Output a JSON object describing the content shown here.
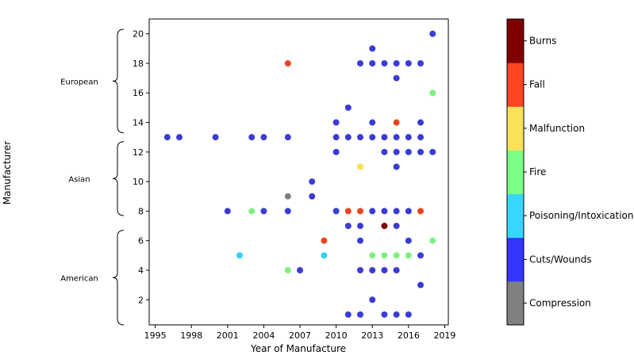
{
  "chart_data": {
    "type": "scatter",
    "xlabel": "Year of Manufacture",
    "ylabel": "Manufacturer",
    "xlim": [
      1994.5,
      2019.3
    ],
    "ylim": [
      0.3,
      21
    ],
    "xticks": [
      1995,
      1998,
      2001,
      2004,
      2007,
      2010,
      2013,
      2016,
      2019
    ],
    "yticks": [
      2,
      4,
      6,
      8,
      10,
      12,
      14,
      16,
      18,
      20
    ],
    "groups": [
      {
        "label": "European",
        "range": [
          13.3,
          20.3
        ]
      },
      {
        "label": "Asian",
        "range": [
          7.7,
          12.7
        ]
      },
      {
        "label": "American",
        "range": [
          0.3,
          6.7
        ]
      }
    ],
    "categories": [
      {
        "name": "Compression",
        "color": "#808080"
      },
      {
        "name": "Cuts/Wounds",
        "color": "#3b3bd6"
      },
      {
        "name": "Poisoning/Intoxication",
        "color": "#33d1f2"
      },
      {
        "name": "Fire",
        "color": "#80f080"
      },
      {
        "name": "Malfunction",
        "color": "#f7e050"
      },
      {
        "name": "Fall",
        "color": "#ee4422"
      },
      {
        "name": "Burns",
        "color": "#800000"
      }
    ],
    "colorbar_colors": [
      "#808080",
      "#3535ff",
      "#36d6ff",
      "#7dff85",
      "#fae35a",
      "#ff4422",
      "#800000"
    ],
    "points": [
      {
        "x": 1996,
        "y": 13,
        "c": "Cuts/Wounds"
      },
      {
        "x": 1997,
        "y": 13,
        "c": "Cuts/Wounds"
      },
      {
        "x": 2000,
        "y": 13,
        "c": "Cuts/Wounds"
      },
      {
        "x": 2003,
        "y": 13,
        "c": "Cuts/Wounds"
      },
      {
        "x": 2004,
        "y": 13,
        "c": "Cuts/Wounds"
      },
      {
        "x": 2006,
        "y": 13,
        "c": "Cuts/Wounds"
      },
      {
        "x": 2010,
        "y": 13,
        "c": "Cuts/Wounds"
      },
      {
        "x": 2011,
        "y": 13,
        "c": "Cuts/Wounds"
      },
      {
        "x": 2012,
        "y": 13,
        "c": "Cuts/Wounds"
      },
      {
        "x": 2013,
        "y": 13,
        "c": "Cuts/Wounds"
      },
      {
        "x": 2014,
        "y": 13,
        "c": "Cuts/Wounds"
      },
      {
        "x": 2015,
        "y": 13,
        "c": "Cuts/Wounds"
      },
      {
        "x": 2016,
        "y": 13,
        "c": "Cuts/Wounds"
      },
      {
        "x": 2017,
        "y": 13,
        "c": "Cuts/Wounds"
      },
      {
        "x": 2006,
        "y": 18,
        "c": "Fall"
      },
      {
        "x": 2012,
        "y": 18,
        "c": "Cuts/Wounds"
      },
      {
        "x": 2013,
        "y": 18,
        "c": "Cuts/Wounds"
      },
      {
        "x": 2014,
        "y": 18,
        "c": "Cuts/Wounds"
      },
      {
        "x": 2015,
        "y": 18,
        "c": "Cuts/Wounds"
      },
      {
        "x": 2016,
        "y": 18,
        "c": "Cuts/Wounds"
      },
      {
        "x": 2017,
        "y": 18,
        "c": "Cuts/Wounds"
      },
      {
        "x": 2013,
        "y": 19,
        "c": "Cuts/Wounds"
      },
      {
        "x": 2018,
        "y": 20,
        "c": "Cuts/Wounds"
      },
      {
        "x": 2015,
        "y": 17,
        "c": "Cuts/Wounds"
      },
      {
        "x": 2018,
        "y": 16,
        "c": "Fire"
      },
      {
        "x": 2011,
        "y": 15,
        "c": "Cuts/Wounds"
      },
      {
        "x": 2010,
        "y": 14,
        "c": "Cuts/Wounds"
      },
      {
        "x": 2013,
        "y": 14,
        "c": "Cuts/Wounds"
      },
      {
        "x": 2015,
        "y": 14,
        "c": "Fall"
      },
      {
        "x": 2017,
        "y": 14,
        "c": "Cuts/Wounds"
      },
      {
        "x": 2010,
        "y": 12,
        "c": "Cuts/Wounds"
      },
      {
        "x": 2014,
        "y": 12,
        "c": "Cuts/Wounds"
      },
      {
        "x": 2015,
        "y": 12,
        "c": "Cuts/Wounds"
      },
      {
        "x": 2016,
        "y": 12,
        "c": "Cuts/Wounds"
      },
      {
        "x": 2017,
        "y": 12,
        "c": "Cuts/Wounds"
      },
      {
        "x": 2018,
        "y": 12,
        "c": "Cuts/Wounds"
      },
      {
        "x": 2012,
        "y": 11,
        "c": "Malfunction"
      },
      {
        "x": 2015,
        "y": 11,
        "c": "Cuts/Wounds"
      },
      {
        "x": 2008,
        "y": 10,
        "c": "Cuts/Wounds"
      },
      {
        "x": 2006,
        "y": 9,
        "c": "Compression"
      },
      {
        "x": 2008,
        "y": 9,
        "c": "Cuts/Wounds"
      },
      {
        "x": 2001,
        "y": 8,
        "c": "Cuts/Wounds"
      },
      {
        "x": 2003,
        "y": 8,
        "c": "Fire"
      },
      {
        "x": 2004,
        "y": 8,
        "c": "Cuts/Wounds"
      },
      {
        "x": 2006,
        "y": 8,
        "c": "Cuts/Wounds"
      },
      {
        "x": 2010,
        "y": 8,
        "c": "Cuts/Wounds"
      },
      {
        "x": 2011,
        "y": 8,
        "c": "Fall"
      },
      {
        "x": 2012,
        "y": 8,
        "c": "Fall"
      },
      {
        "x": 2013,
        "y": 8,
        "c": "Cuts/Wounds"
      },
      {
        "x": 2014,
        "y": 8,
        "c": "Cuts/Wounds"
      },
      {
        "x": 2015,
        "y": 8,
        "c": "Cuts/Wounds"
      },
      {
        "x": 2016,
        "y": 8,
        "c": "Cuts/Wounds"
      },
      {
        "x": 2017,
        "y": 8,
        "c": "Fall"
      },
      {
        "x": 2011,
        "y": 7,
        "c": "Cuts/Wounds"
      },
      {
        "x": 2012,
        "y": 7,
        "c": "Cuts/Wounds"
      },
      {
        "x": 2014,
        "y": 7,
        "c": "Burns"
      },
      {
        "x": 2015,
        "y": 7,
        "c": "Cuts/Wounds"
      },
      {
        "x": 2009,
        "y": 6,
        "c": "Fall"
      },
      {
        "x": 2012,
        "y": 6,
        "c": "Cuts/Wounds"
      },
      {
        "x": 2016,
        "y": 6,
        "c": "Cuts/Wounds"
      },
      {
        "x": 2018,
        "y": 6,
        "c": "Fire"
      },
      {
        "x": 2002,
        "y": 5,
        "c": "Poisoning/Intoxication"
      },
      {
        "x": 2009,
        "y": 5,
        "c": "Poisoning/Intoxication"
      },
      {
        "x": 2013,
        "y": 5,
        "c": "Fire"
      },
      {
        "x": 2014,
        "y": 5,
        "c": "Fire"
      },
      {
        "x": 2015,
        "y": 5,
        "c": "Fire"
      },
      {
        "x": 2016,
        "y": 5,
        "c": "Fire"
      },
      {
        "x": 2017,
        "y": 5,
        "c": "Cuts/Wounds"
      },
      {
        "x": 2006,
        "y": 4,
        "c": "Fire"
      },
      {
        "x": 2007,
        "y": 4,
        "c": "Cuts/Wounds"
      },
      {
        "x": 2012,
        "y": 4,
        "c": "Cuts/Wounds"
      },
      {
        "x": 2013,
        "y": 4,
        "c": "Cuts/Wounds"
      },
      {
        "x": 2014,
        "y": 4,
        "c": "Cuts/Wounds"
      },
      {
        "x": 2015,
        "y": 4,
        "c": "Cuts/Wounds"
      },
      {
        "x": 2017,
        "y": 3,
        "c": "Cuts/Wounds"
      },
      {
        "x": 2013,
        "y": 2,
        "c": "Cuts/Wounds"
      },
      {
        "x": 2011,
        "y": 1,
        "c": "Cuts/Wounds"
      },
      {
        "x": 2012,
        "y": 1,
        "c": "Cuts/Wounds"
      },
      {
        "x": 2014,
        "y": 1,
        "c": "Cuts/Wounds"
      },
      {
        "x": 2015,
        "y": 1,
        "c": "Cuts/Wounds"
      },
      {
        "x": 2016,
        "y": 1,
        "c": "Cuts/Wounds"
      }
    ]
  }
}
